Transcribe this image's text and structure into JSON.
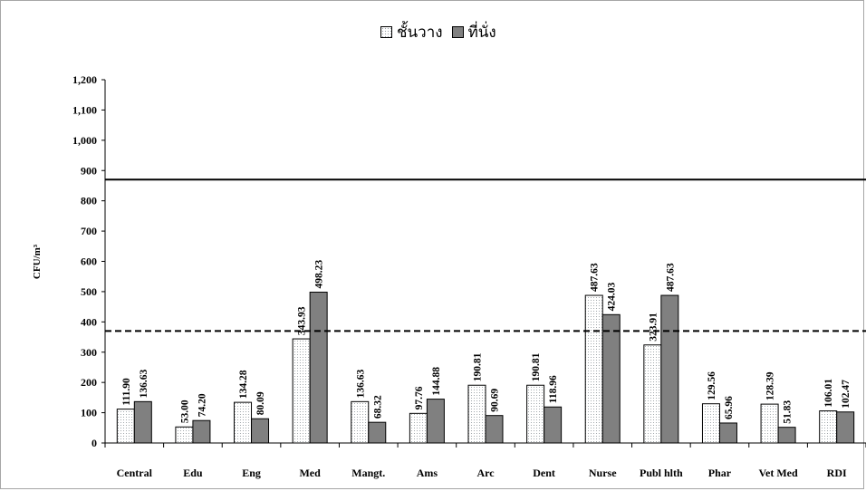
{
  "chart_data": {
    "type": "bar",
    "ylabel": "CFU/m³",
    "ylim": [
      0,
      1200
    ],
    "yticks": [
      "0",
      "100",
      "200",
      "300",
      "400",
      "500",
      "600",
      "700",
      "800",
      "900",
      "1,000",
      "1,100",
      "1,200"
    ],
    "categories": [
      "Central",
      "Edu",
      "Eng",
      "Med",
      "Mangt.",
      "Ams",
      "Arc",
      "Dent",
      "Nurse",
      "Publ hlth",
      "Phar",
      "Vet Med",
      "RDI"
    ],
    "series": [
      {
        "name": "ชั้นวาง",
        "color": "#ffffff",
        "pattern": "dotted",
        "values": [
          111.9,
          53.0,
          134.28,
          343.93,
          136.63,
          97.76,
          190.81,
          190.81,
          487.63,
          323.91,
          129.56,
          128.39,
          106.01
        ],
        "labels": [
          "111.90",
          "53.00",
          "134.28",
          "343.93",
          "136.63",
          "97.76",
          "190.81",
          "190.81",
          "487.63",
          "323.91",
          "129.56",
          "128.39",
          "106.01"
        ]
      },
      {
        "name": "ที่นั่ง",
        "color": "#808080",
        "pattern": "solid",
        "values": [
          136.63,
          74.2,
          80.09,
          498.23,
          68.32,
          144.88,
          90.69,
          118.96,
          424.03,
          487.63,
          65.96,
          51.83,
          102.47
        ],
        "labels": [
          "136.63",
          "74.20",
          "80.09",
          "498.23",
          "68.32",
          "144.88",
          "90.69",
          "118.96",
          "424.03",
          "487.63",
          "65.96",
          "51.83",
          "102.47"
        ]
      }
    ],
    "reference_lines": [
      {
        "value": 870,
        "style": "solid"
      },
      {
        "value": 370,
        "style": "dashed"
      }
    ],
    "legend_position": "top-center",
    "grid": false
  }
}
